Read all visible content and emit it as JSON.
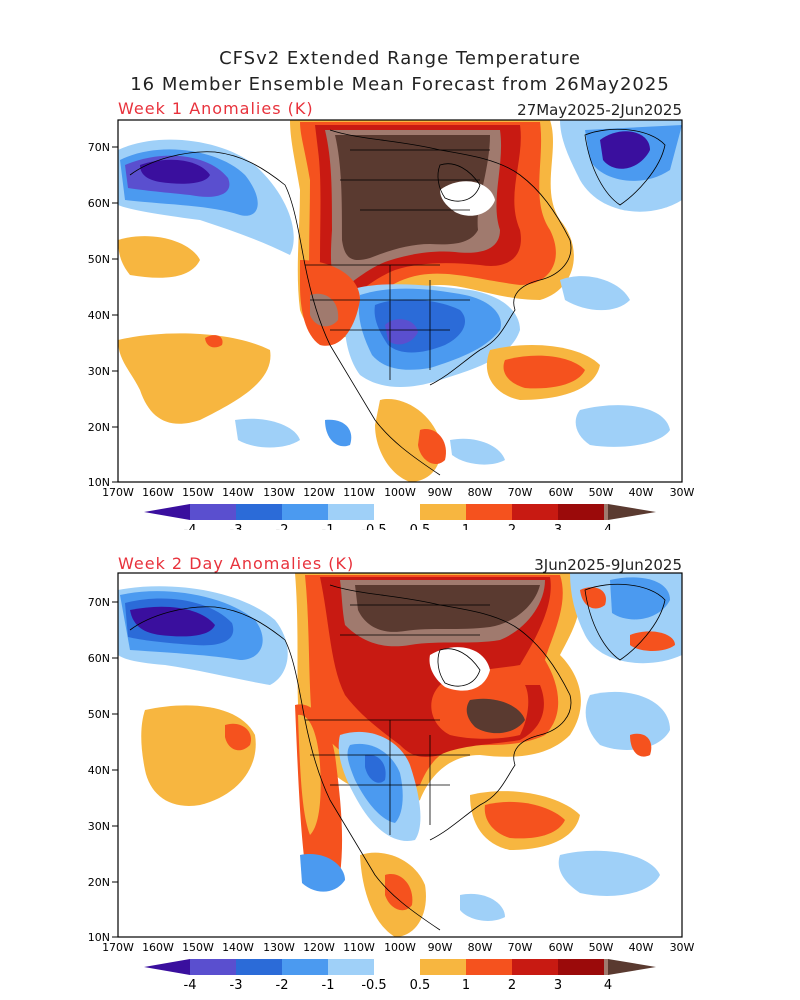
{
  "header": {
    "title_line1": "CFSv2 Extended Range Temperature",
    "title_line2": "16 Member Ensemble Mean Forecast from 26May2025"
  },
  "panels": [
    {
      "label": "Week 1 Anomalies (K)",
      "period": "27May2025-2Jun2025"
    },
    {
      "label": "Week 2 Day Anomalies (K)",
      "period": "3Jun2025-9Jun2025"
    }
  ],
  "axes": {
    "lat_labels": [
      "70N",
      "60N",
      "50N",
      "40N",
      "30N",
      "20N",
      "10N"
    ],
    "lon_labels": [
      "170W",
      "160W",
      "150W",
      "140W",
      "130W",
      "120W",
      "110W",
      "100W",
      "90W",
      "80W",
      "70W",
      "60W",
      "50W",
      "40W",
      "30W"
    ]
  },
  "colorbar": {
    "labels": [
      "-4",
      "-3",
      "-2",
      "-1",
      "-0.5",
      "0.5",
      "1",
      "2",
      "3",
      "4"
    ],
    "colors": [
      "#3a0f9e",
      "#5a4fcf",
      "#2b6bd8",
      "#4b9af0",
      "#9fd0f8",
      "#ffffff",
      "#f7b640",
      "#f5521e",
      "#c81a12",
      "#9b0a0a",
      "#a07a6e",
      "#5a3a30"
    ]
  }
}
